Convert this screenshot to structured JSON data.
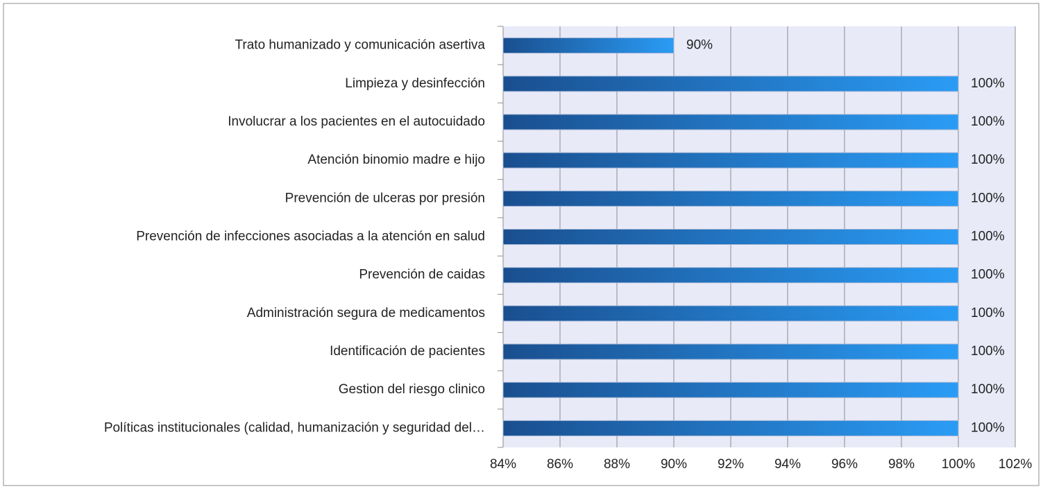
{
  "chart_data": {
    "type": "bar",
    "orientation": "horizontal",
    "categories": [
      "Trato humanizado y comunicación asertiva",
      "Limpieza y desinfección",
      "Involucrar a los pacientes en el autocuidado",
      "Atención binomio madre e hijo",
      "Prevención de ulceras por presión",
      "Prevención de infecciones asociadas a la atención en salud",
      "Prevención de caidas",
      "Administración segura de medicamentos",
      "Identificación de pacientes",
      "Gestion del riesgo clinico",
      "Políticas institucionales (calidad, humanización y seguridad del…"
    ],
    "values": [
      90,
      100,
      100,
      100,
      100,
      100,
      100,
      100,
      100,
      100,
      100
    ],
    "value_labels": [
      "90%",
      "100%",
      "100%",
      "100%",
      "100%",
      "100%",
      "100%",
      "100%",
      "100%",
      "100%",
      "100%"
    ],
    "color": "#2a9cf5",
    "xlim": [
      84,
      102
    ],
    "xticks": [
      {
        "value": 84,
        "label": "84%"
      },
      {
        "value": 86,
        "label": "86%"
      },
      {
        "value": 88,
        "label": "88%"
      },
      {
        "value": 90,
        "label": "90%"
      },
      {
        "value": 92,
        "label": "92%"
      },
      {
        "value": 94,
        "label": "94%"
      },
      {
        "value": 96,
        "label": "96%"
      },
      {
        "value": 98,
        "label": "98%"
      },
      {
        "value": 100,
        "label": "100%"
      },
      {
        "value": 102,
        "label": "102%"
      }
    ],
    "grid": true
  }
}
